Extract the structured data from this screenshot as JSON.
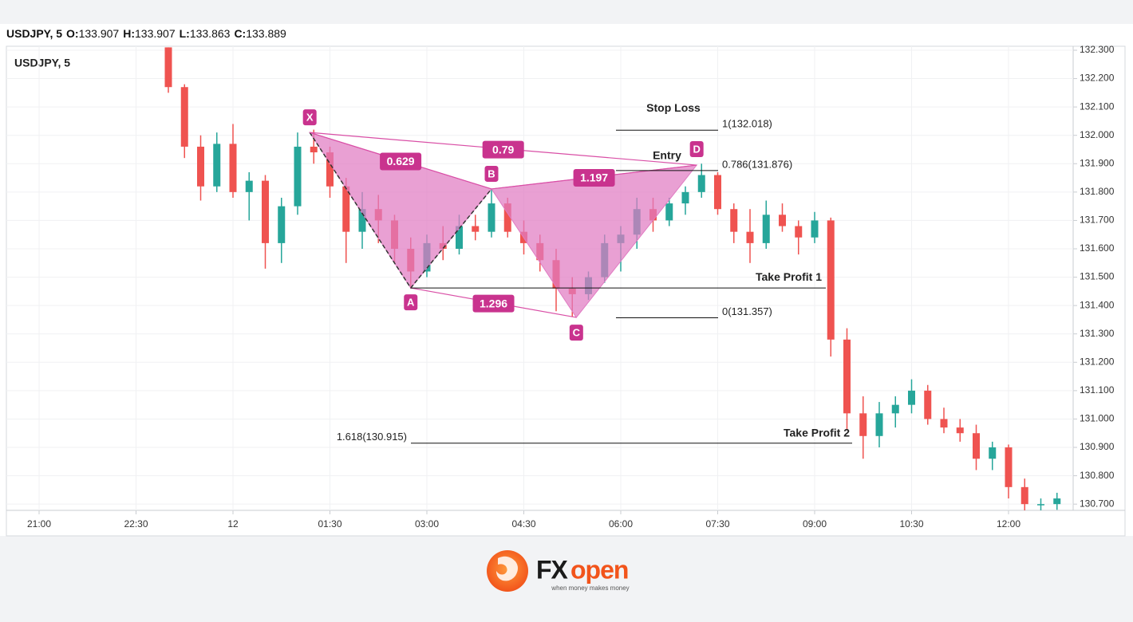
{
  "header": {
    "symbol": "USDJPY, 5",
    "ohlc": [
      {
        "label": "O:",
        "value": 133.907
      },
      {
        "label": "H:",
        "value": 133.907
      },
      {
        "label": "L:",
        "value": 133.863
      },
      {
        "label": "C:",
        "value": 133.889
      }
    ]
  },
  "chart_data": {
    "type": "candlestick",
    "legend_label": "USDJPY, 5",
    "categories": [
      null,
      null,
      "21:00",
      null,
      null,
      null,
      null,
      null,
      "22:30",
      null,
      null,
      null,
      null,
      null,
      "12",
      null,
      null,
      null,
      null,
      null,
      "01:30",
      null,
      null,
      null,
      null,
      null,
      "03:00",
      null,
      null,
      null,
      null,
      null,
      "04:30",
      null,
      null,
      null,
      null,
      null,
      "06:00",
      null,
      null,
      null,
      null,
      null,
      "07:30",
      null,
      null,
      null,
      null,
      null,
      "09:00",
      null,
      null,
      null,
      null,
      null,
      "10:30",
      null,
      null,
      null,
      null,
      null,
      "12:00",
      null,
      null,
      null
    ],
    "open": [
      null,
      null,
      null,
      null,
      null,
      null,
      null,
      null,
      null,
      null,
      132.31,
      132.17,
      131.96,
      131.82,
      131.97,
      131.8,
      131.84,
      131.62,
      131.75,
      131.96,
      131.94,
      131.82,
      131.66,
      131.74,
      131.7,
      131.6,
      131.52,
      131.62,
      131.6,
      131.68,
      131.66,
      131.76,
      131.66,
      131.62,
      131.56,
      131.46,
      131.44,
      131.5,
      131.62,
      131.65,
      131.74,
      131.7,
      131.76,
      131.8,
      131.86,
      131.74,
      131.66,
      131.62,
      131.72,
      131.68,
      131.64,
      131.7,
      131.28,
      131.02,
      130.94,
      131.02,
      131.05,
      131.1,
      131.0,
      130.97,
      130.95,
      130.86,
      130.9,
      130.76,
      130.7,
      130.7
    ],
    "high": [
      null,
      null,
      null,
      null,
      null,
      null,
      null,
      null,
      null,
      null,
      132.31,
      132.18,
      132.0,
      132.01,
      132.04,
      131.87,
      131.86,
      131.78,
      132.01,
      132.02,
      131.96,
      131.85,
      131.8,
      131.79,
      131.72,
      131.64,
      131.65,
      131.68,
      131.72,
      131.72,
      131.81,
      131.78,
      131.7,
      131.65,
      131.6,
      131.5,
      131.52,
      131.65,
      131.68,
      131.78,
      131.78,
      131.78,
      131.82,
      131.9,
      131.87,
      131.76,
      131.74,
      131.77,
      131.76,
      131.7,
      131.73,
      131.71,
      131.32,
      131.08,
      131.06,
      131.08,
      131.14,
      131.12,
      131.04,
      131.0,
      130.98,
      130.92,
      130.91,
      130.79,
      130.72,
      130.74
    ],
    "low": [
      null,
      null,
      null,
      null,
      null,
      null,
      null,
      null,
      null,
      null,
      132.15,
      131.92,
      131.77,
      131.8,
      131.78,
      131.7,
      131.53,
      131.55,
      131.72,
      131.9,
      131.78,
      131.55,
      131.6,
      131.62,
      131.55,
      131.46,
      131.5,
      131.56,
      131.58,
      131.63,
      131.64,
      131.64,
      131.58,
      131.52,
      131.38,
      131.36,
      131.42,
      131.48,
      131.52,
      131.6,
      131.66,
      131.68,
      131.72,
      131.78,
      131.72,
      131.62,
      131.55,
      131.6,
      131.66,
      131.58,
      131.62,
      131.22,
      130.96,
      130.86,
      130.9,
      130.97,
      131.02,
      130.98,
      130.95,
      130.92,
      130.82,
      130.82,
      130.72,
      130.66,
      130.66,
      130.68
    ],
    "close": [
      null,
      null,
      null,
      null,
      null,
      null,
      null,
      null,
      null,
      null,
      132.17,
      131.96,
      131.82,
      131.97,
      131.8,
      131.84,
      131.62,
      131.75,
      131.96,
      131.94,
      131.82,
      131.66,
      131.74,
      131.7,
      131.6,
      131.52,
      131.62,
      131.6,
      131.68,
      131.66,
      131.76,
      131.66,
      131.62,
      131.56,
      131.46,
      131.44,
      131.5,
      131.62,
      131.65,
      131.74,
      131.7,
      131.76,
      131.8,
      131.86,
      131.74,
      131.66,
      131.62,
      131.72,
      131.68,
      131.64,
      131.7,
      131.28,
      131.02,
      130.94,
      131.02,
      131.05,
      131.1,
      131.0,
      130.97,
      130.95,
      130.86,
      130.9,
      130.76,
      130.7,
      130.7,
      130.72
    ],
    "up_color": "#26a69a",
    "down_color": "#ef5350",
    "ylim": [
      130.678,
      132.314
    ],
    "yticks": [
      {
        "value": 130.7,
        "label": "130.700"
      },
      {
        "value": 130.8,
        "label": "130.800"
      },
      {
        "value": 130.9,
        "label": "130.900"
      },
      {
        "value": 131.0,
        "label": "131.000"
      },
      {
        "value": 131.1,
        "label": "131.100"
      },
      {
        "value": 131.2,
        "label": "131.200"
      },
      {
        "value": 131.3,
        "label": "131.300"
      },
      {
        "value": 131.4,
        "label": "131.400"
      },
      {
        "value": 131.5,
        "label": "131.500"
      },
      {
        "value": 131.6,
        "label": "131.600"
      },
      {
        "value": 131.7,
        "label": "131.700"
      },
      {
        "value": 131.8,
        "label": "131.800"
      },
      {
        "value": 131.9,
        "label": "131.900"
      },
      {
        "value": 132.0,
        "label": "132.000"
      },
      {
        "value": 132.1,
        "label": "132.100"
      },
      {
        "value": 132.2,
        "label": "132.200"
      },
      {
        "value": 132.3,
        "label": "132.300"
      }
    ],
    "grid": true,
    "pattern": {
      "color": "#e07bc2",
      "points": [
        {
          "label": "X",
          "index": 18.75,
          "price": 132.01
        },
        {
          "label": "A",
          "index": 25,
          "price": 131.462
        },
        {
          "label": "B",
          "index": 30,
          "price": 131.811
        },
        {
          "label": "C",
          "index": 35.25,
          "price": 131.358
        },
        {
          "label": "D",
          "index": 42.7,
          "price": 131.895
        }
      ],
      "ratios": [
        0.629,
        0.79,
        1.197,
        1.296
      ]
    },
    "levels": [
      {
        "label": "1(132.018)",
        "price": 132.018
      },
      {
        "label": "0.786(131.876)",
        "price": 131.876
      },
      {
        "label": "0(131.357)",
        "price": 131.357
      },
      {
        "label": "1.618(130.915)",
        "price": 130.915
      }
    ],
    "annotations": [
      "Stop Loss",
      "Entry",
      "Take Profit 1",
      "Take Profit 2"
    ]
  },
  "footer": {
    "brand_fx": "FX",
    "brand_open": "open",
    "tagline": "when money makes money"
  }
}
